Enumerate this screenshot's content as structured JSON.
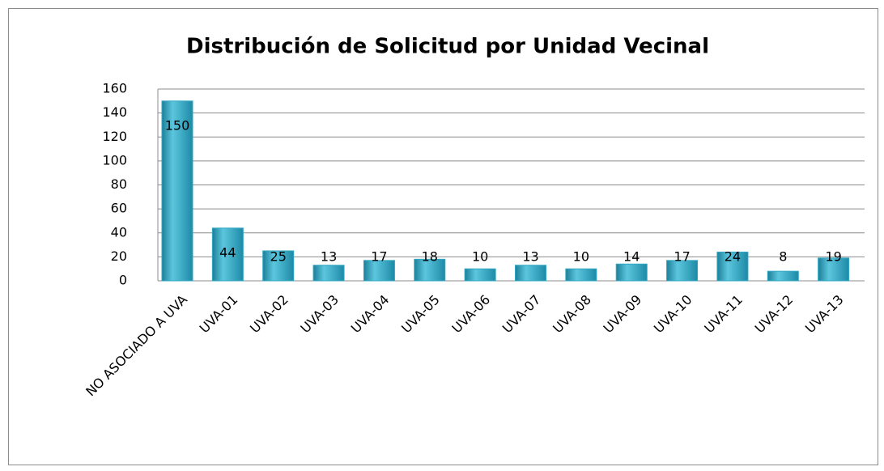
{
  "chart_data": {
    "type": "bar",
    "title": "Distribución de Solicitud por Unidad Vecinal",
    "categories": [
      "NO ASOCIADO A UVA",
      "UVA-01",
      "UVA-02",
      "UVA-03",
      "UVA-04",
      "UVA-05",
      "UVA-06",
      "UVA-07",
      "UVA-08",
      "UVA-09",
      "UVA-10",
      "UVA-11",
      "UVA-12",
      "UVA-13"
    ],
    "values": [
      150,
      44,
      25,
      13,
      17,
      18,
      10,
      13,
      10,
      14,
      17,
      24,
      8,
      19
    ],
    "color": "#31a7c4",
    "ylim": [
      0,
      160
    ],
    "yticks": [
      0,
      20,
      40,
      60,
      80,
      100,
      120,
      140,
      160
    ],
    "grid": true
  }
}
